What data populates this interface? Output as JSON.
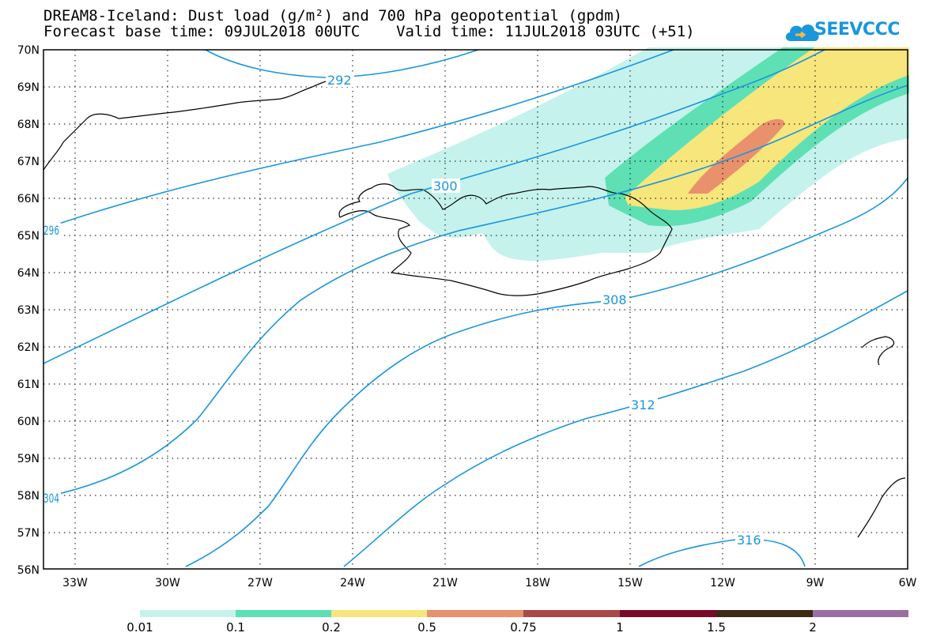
{
  "title_line1": "DREAM8-Iceland: Dust load (g/m²) and 700 hPa geopotential (gpdm)",
  "title_line2": "Forecast base time: 09JUL2018 00UTC    Valid time: 11JUL2018 03UTC (+51)",
  "logo_text": "SEEVCCC",
  "logo_icon": "cloud-icon",
  "lat_labels": [
    "70N",
    "69N",
    "68N",
    "67N",
    "66N",
    "65N",
    "64N",
    "63N",
    "62N",
    "61N",
    "60N",
    "59N",
    "58N",
    "57N",
    "56N"
  ],
  "lon_labels": [
    "33W",
    "30W",
    "27W",
    "24W",
    "21W",
    "18W",
    "15W",
    "12W",
    "9W",
    "6W"
  ],
  "contour_labels": [
    "292",
    "296",
    "300",
    "304",
    "308",
    "312",
    "316"
  ],
  "colorbar": {
    "labels": [
      "0.01",
      "0.1",
      "0.2",
      "0.5",
      "0.75",
      "1",
      "1.5",
      "2"
    ],
    "colors": [
      "#c5f2ec",
      "#5ee0b4",
      "#f6e67c",
      "#e9906c",
      "#a94a48",
      "#7a0a2a",
      "#3c2a14",
      "#9a6fa3"
    ]
  },
  "contour_color": "#1a96dd"
}
